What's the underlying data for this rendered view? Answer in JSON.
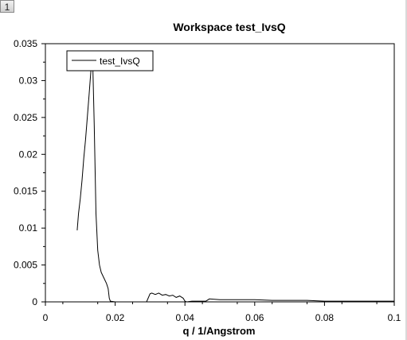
{
  "window": {
    "tab_label": "1"
  },
  "chart_data": {
    "type": "line",
    "title": "Workspace test_IvsQ",
    "xlabel": "q / 1/Angstrom",
    "ylabel": "",
    "xlim": [
      0,
      0.1
    ],
    "ylim": [
      0,
      0.035
    ],
    "x_ticks": [
      0,
      0.02,
      0.04,
      0.06,
      0.08,
      0.1
    ],
    "x_tick_labels": [
      "0",
      "0.02",
      "0.04",
      "0.06",
      "0.08",
      "0.1"
    ],
    "y_ticks": [
      0,
      0.005,
      0.01,
      0.015,
      0.02,
      0.025,
      0.03,
      0.035
    ],
    "y_tick_labels": [
      "0",
      "0.005",
      "0.01",
      "0.015",
      "0.02",
      "0.025",
      "0.03",
      "0.035"
    ],
    "grid": false,
    "legend_position": "top-left",
    "series": [
      {
        "name": "test_IvsQ",
        "color": "#000000",
        "x": [
          0.0091,
          0.0095,
          0.01,
          0.0105,
          0.011,
          0.0115,
          0.012,
          0.0125,
          0.013,
          0.0135,
          0.014,
          0.0145,
          0.015,
          0.0155,
          0.016,
          0.0165,
          0.017,
          0.0175,
          0.018,
          0.0183,
          0.0186,
          0.02,
          0.025,
          0.029,
          0.03,
          0.0305,
          0.0315,
          0.0325,
          0.0335,
          0.0345,
          0.0355,
          0.0365,
          0.0375,
          0.0385,
          0.0395,
          0.04,
          0.0405,
          0.042,
          0.044,
          0.046,
          0.047,
          0.05,
          0.055,
          0.06,
          0.065,
          0.07,
          0.075,
          0.08,
          0.085,
          0.09,
          0.095,
          0.1
        ],
        "y": [
          0.0097,
          0.012,
          0.014,
          0.0165,
          0.0195,
          0.022,
          0.025,
          0.028,
          0.031,
          0.034,
          0.024,
          0.012,
          0.007,
          0.005,
          0.004,
          0.0035,
          0.003,
          0.0025,
          0.0018,
          0.0005,
          0.0001,
          0.0,
          0.0,
          0.0,
          0.0011,
          0.0012,
          0.001,
          0.0012,
          0.0009,
          0.001,
          0.0008,
          0.0009,
          0.0006,
          0.0008,
          0.0005,
          0.0001,
          0.0,
          0.0001,
          0.0001,
          0.0001,
          0.0004,
          0.0003,
          0.0003,
          0.0003,
          0.0002,
          0.0002,
          0.0002,
          0.0001,
          0.0001,
          0.0001,
          0.0001,
          0.0001
        ]
      }
    ]
  }
}
